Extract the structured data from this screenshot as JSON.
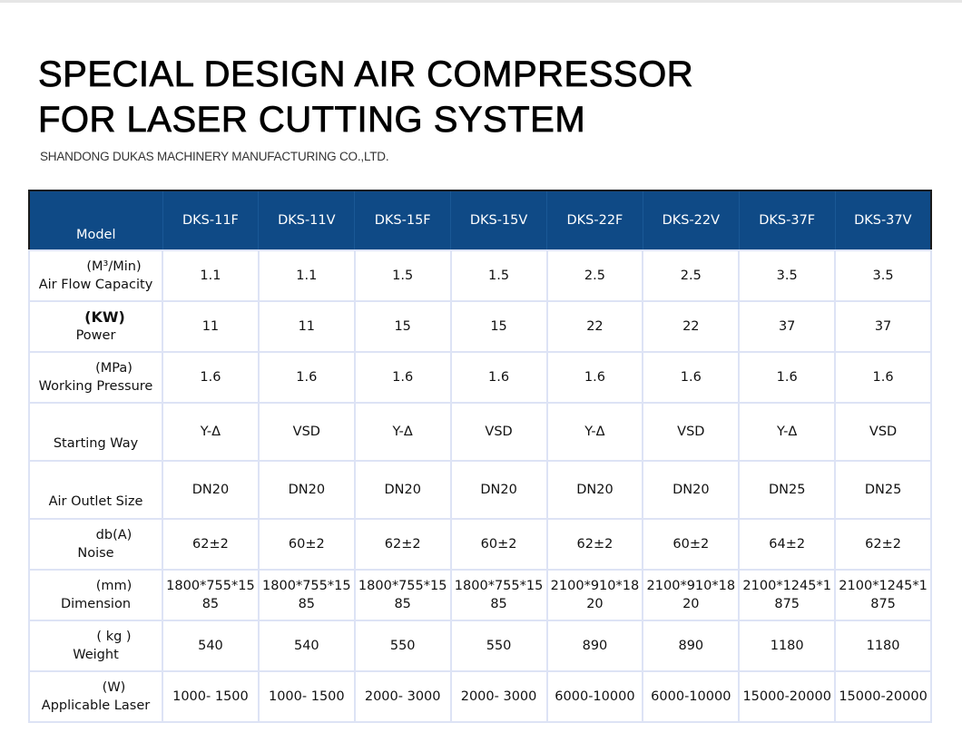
{
  "title_line1": "SPECIAL DESIGN AIR COMPRESSOR",
  "title_line2": "FOR LASER CUTTING SYSTEM",
  "company": "SHANDONG DUKAS MACHINERY MANUFACTURING CO.,LTD.",
  "table": {
    "header_label": "Model",
    "models": [
      "DKS-11F",
      "DKS-11V",
      "DKS-15F",
      "DKS-15V",
      "DKS-22F",
      "DKS-22V",
      "DKS-37F",
      "DKS-37V"
    ],
    "rows": [
      {
        "unit": "(M³/Min)",
        "name": "Air Flow Capacity",
        "values": [
          "1.1",
          "1.1",
          "1.5",
          "1.5",
          "2.5",
          "2.5",
          "3.5",
          "3.5"
        ]
      },
      {
        "unit": "(KW)",
        "name": "Power",
        "values": [
          "11",
          "11",
          "15",
          "15",
          "22",
          "22",
          "37",
          "37"
        ]
      },
      {
        "unit": "(MPa)",
        "name": "Working Pressure",
        "values": [
          "1.6",
          "1.6",
          "1.6",
          "1.6",
          "1.6",
          "1.6",
          "1.6",
          "1.6"
        ]
      },
      {
        "unit": "",
        "name": "Starting Way",
        "values": [
          "Y-Δ",
          "VSD",
          "Y-Δ",
          "VSD",
          "Y-Δ",
          "VSD",
          "Y-Δ",
          "VSD"
        ]
      },
      {
        "unit": "",
        "name": "Air Outlet Size",
        "values": [
          "DN20",
          "DN20",
          "DN20",
          "DN20",
          "DN20",
          "DN20",
          "DN25",
          "DN25"
        ]
      },
      {
        "unit": "db(A)",
        "name": "Noise",
        "values": [
          "62±2",
          "60±2",
          "62±2",
          "60±2",
          "62±2",
          "60±2",
          "64±2",
          "62±2"
        ]
      },
      {
        "unit": "(mm)",
        "name": "Dimension",
        "values": [
          "1800*755*1585",
          "1800*755*1585",
          "1800*755*1585",
          "1800*755*1585",
          "2100*910*1820",
          "2100*910*1820",
          "2100*1245*1875",
          "2100*1245*1875"
        ]
      },
      {
        "unit": "( kg )",
        "name": "Weight",
        "values": [
          "540",
          "540",
          "550",
          "550",
          "890",
          "890",
          "1180",
          "1180"
        ]
      },
      {
        "unit": "(W)",
        "name": "Applicable Laser",
        "values": [
          "1000- 1500",
          "1000- 1500",
          "2000- 3000",
          "2000- 3000",
          "6000-10000",
          "6000-10000",
          "15000-20000",
          "15000-20000"
        ]
      }
    ]
  },
  "colors": {
    "header_bg": "#0f4a86",
    "grid": "#dde3f5"
  }
}
